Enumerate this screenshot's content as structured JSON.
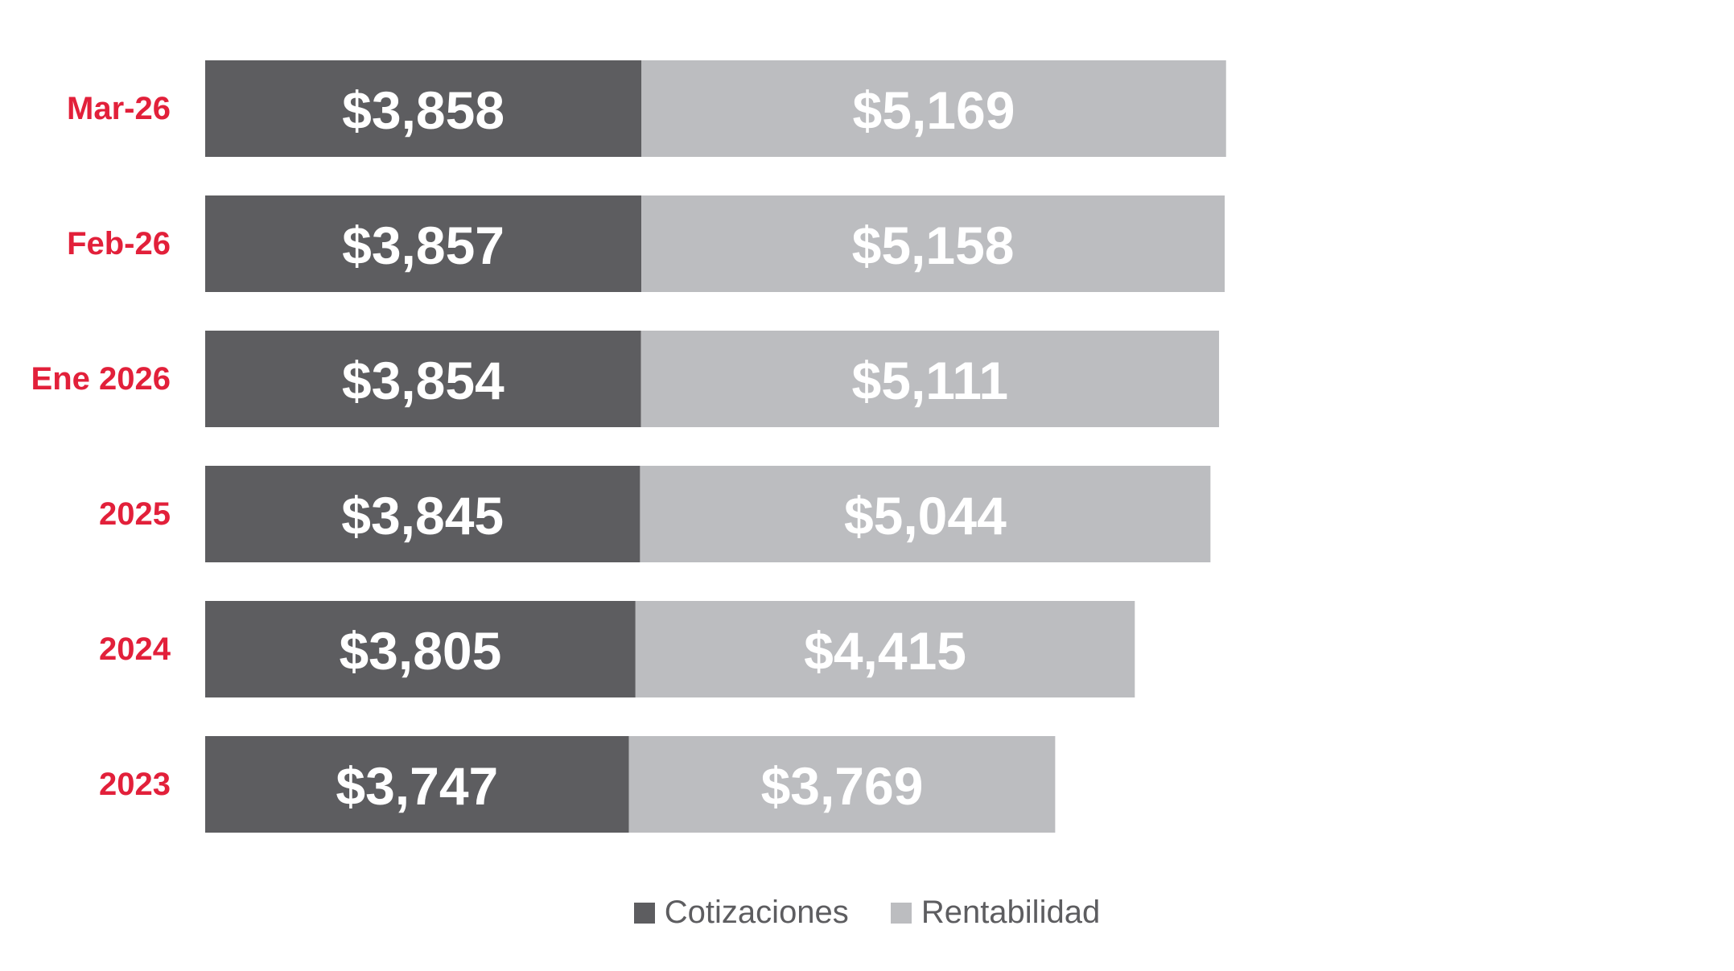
{
  "colors": {
    "category_label": "#e2203a",
    "value_label": "#ffffff",
    "series": [
      "#5d5d60",
      "#bcbdc0"
    ]
  },
  "chart_data": {
    "type": "bar",
    "orientation": "horizontal",
    "stacked": true,
    "categories": [
      "Mar-26",
      "Feb-26",
      "Ene 2026",
      "2025",
      "2024",
      "2023"
    ],
    "series": [
      {
        "name": "Cotizaciones",
        "values": [
          3858,
          3857,
          3854,
          3845,
          3805,
          3747
        ],
        "labels": [
          "$3,858",
          "$3,857",
          "$3,854",
          "$3,845",
          "$3,805",
          "$3,747"
        ]
      },
      {
        "name": "Rentabilidad",
        "values": [
          5169,
          5158,
          5111,
          5044,
          4415,
          3769
        ],
        "labels": [
          "$5,169",
          "$5,158",
          "$5,111",
          "$5,044",
          "$4,415",
          "$3,769"
        ]
      }
    ],
    "title": "",
    "xlabel": "",
    "ylabel": "",
    "xlim": [
      0,
      9600
    ],
    "grid": false,
    "legend": "bottom-center"
  }
}
